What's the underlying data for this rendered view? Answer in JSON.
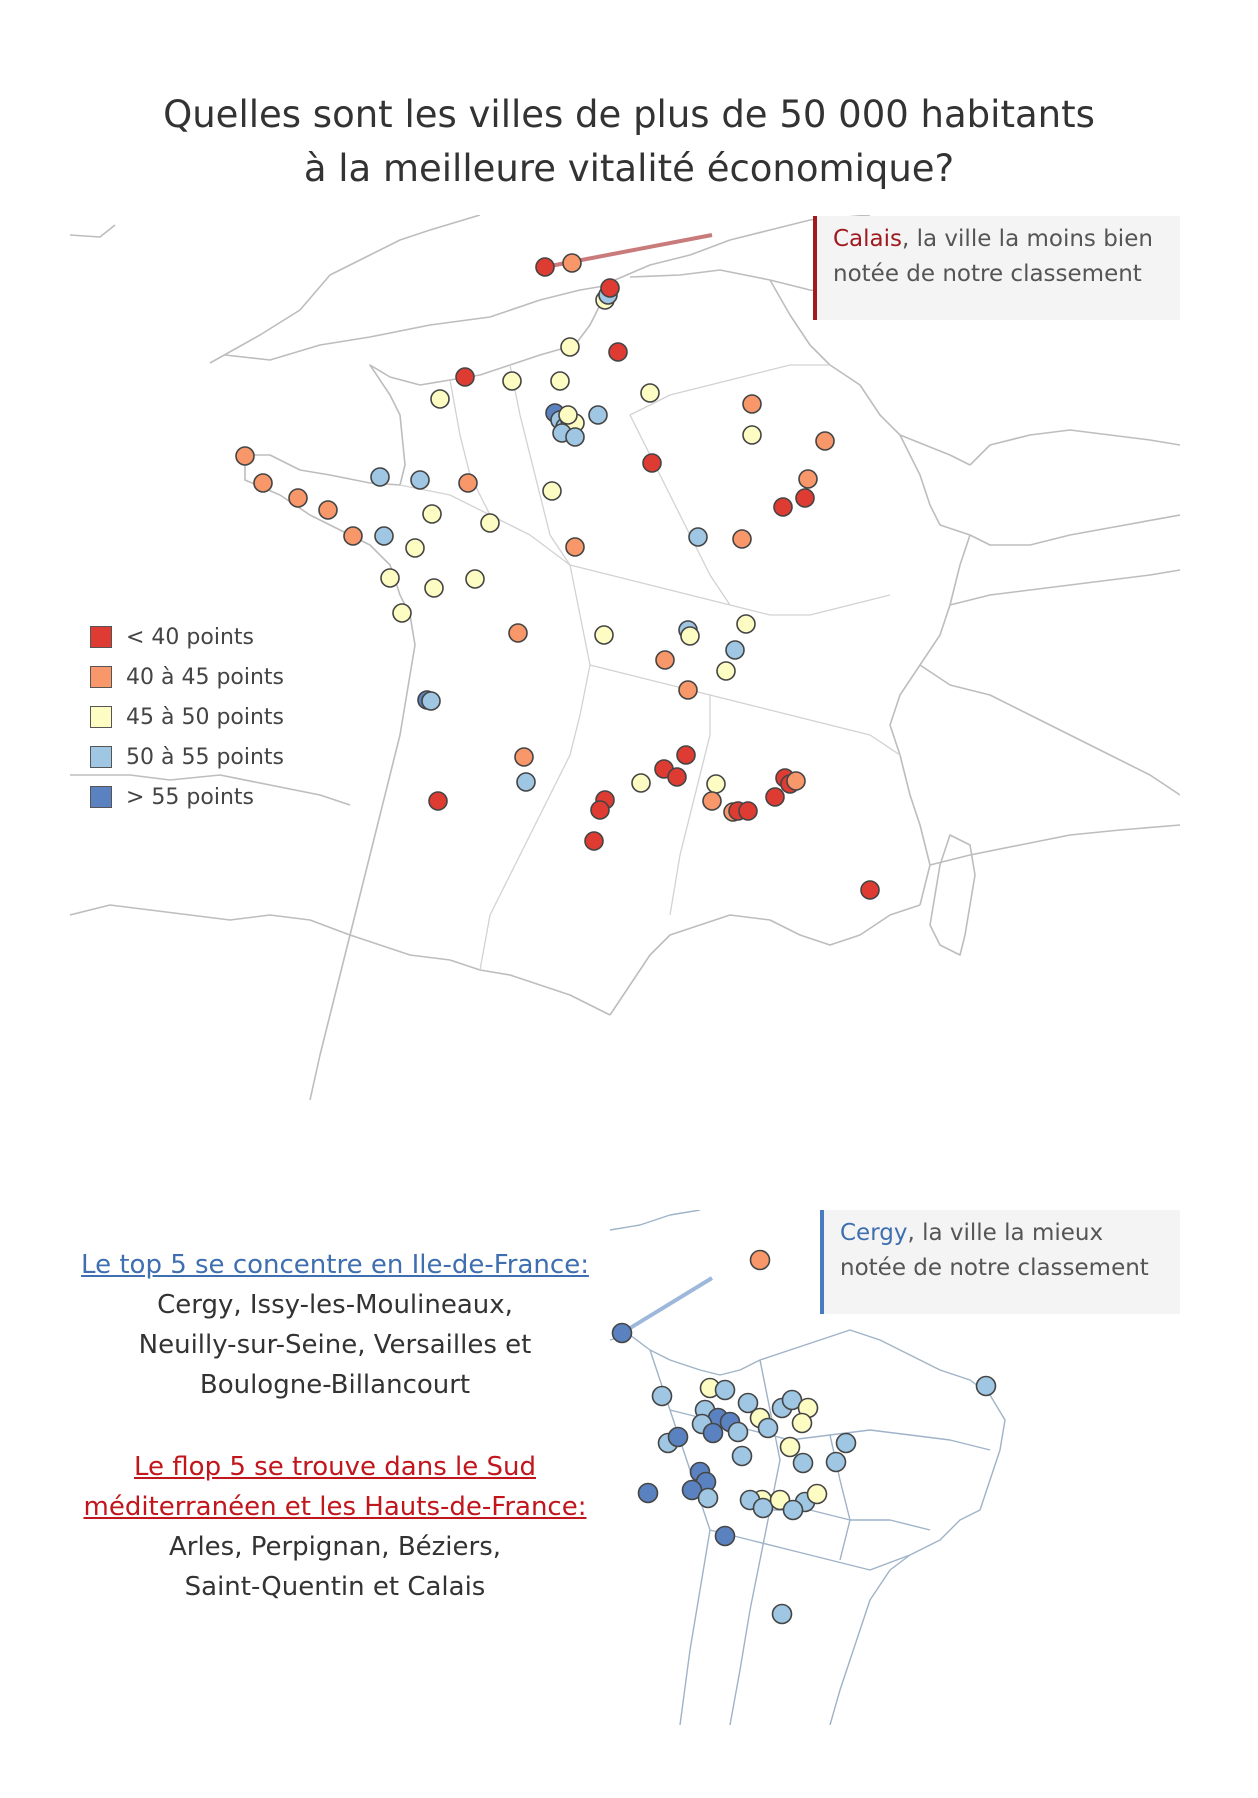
{
  "title": {
    "line1": "Quelles sont les villes de plus de 50 000 habitants",
    "line2": "à la meilleure vitalité économique?"
  },
  "callout_worst": {
    "city": "Calais",
    "text_line1_rest": ", la ville la moins bien",
    "text_line2": "notée de notre classement"
  },
  "callout_best": {
    "city": "Cergy",
    "text_line1_rest": ", la ville la mieux",
    "text_line2": "notée de notre classement"
  },
  "legend": {
    "items": [
      {
        "label": "< 40 points",
        "color": "#de3b33"
      },
      {
        "label": "40 à 45 points",
        "color": "#f7976a"
      },
      {
        "label": "45 à 50 points",
        "color": "#fdfcc3"
      },
      {
        "label": "50 à 55 points",
        "color": "#9fc6e2"
      },
      {
        "label": "> 55 points",
        "color": "#5b82c0"
      }
    ]
  },
  "top5": {
    "heading": "Le top 5 se concentre en Ile-de-France:",
    "lines": [
      "Cergy, Issy-les-Moulineaux,",
      "Neuilly-sur-Seine, Versailles et",
      "Boulogne-Billancourt"
    ]
  },
  "flop5": {
    "heading_line1": "Le flop 5 se trouve dans le Sud",
    "heading_line2": "méditerranéen et les Hauts-de-France:",
    "lines": [
      "Arles, Perpignan, Béziers,",
      "Saint-Quentin et Calais"
    ]
  },
  "colors": {
    "lt40": "#de3b33",
    "p40_45": "#f7976a",
    "p45_50": "#fdfcc3",
    "p50_55": "#9fc6e2",
    "gt55": "#5b82c0",
    "border_gray": "#bdbdbd",
    "idf_border": "#9fb3c8"
  }
}
